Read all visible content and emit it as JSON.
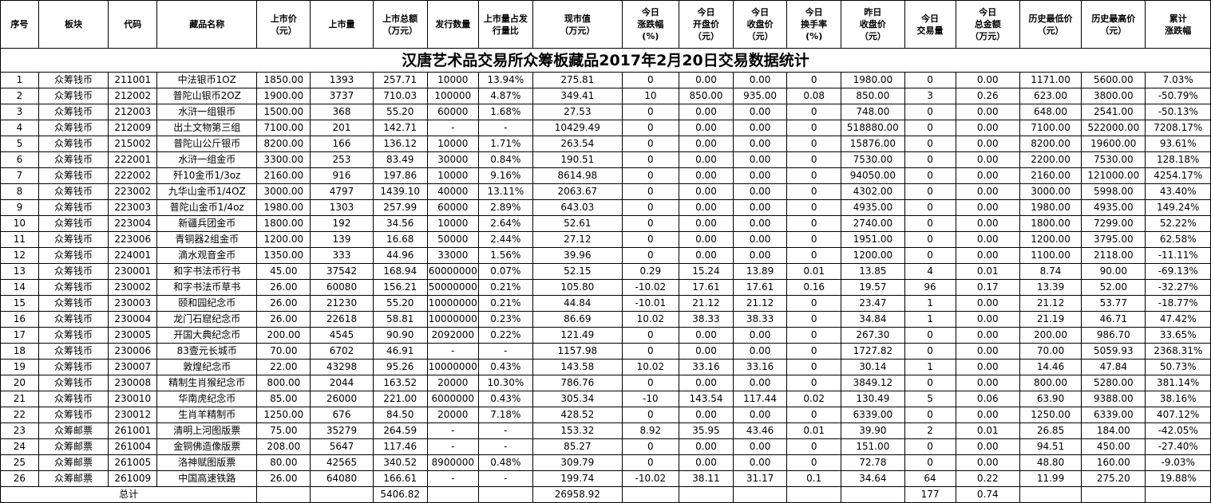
{
  "title": "汉唐艺术品交易所众筹板藏品2017年2月20日交易数据统计",
  "columns": [
    [
      "序号"
    ],
    [
      "板块"
    ],
    [
      "代码"
    ],
    [
      "藏品名称"
    ],
    [
      "上市价",
      "（元）"
    ],
    [
      "上市量"
    ],
    [
      "上市总额",
      "（万元）"
    ],
    [
      "发行数量"
    ],
    [
      "上市量占发",
      "行量比"
    ],
    [
      "现市值",
      "（万元）"
    ],
    [
      "今日",
      "涨跌幅",
      "(%)"
    ],
    [
      "今日",
      "开盘价",
      "（元）"
    ],
    [
      "今日",
      "收盘价",
      "（元）"
    ],
    [
      "今日",
      "换手率",
      "(%)"
    ],
    [
      "昨日",
      "收盘价",
      "（元）"
    ],
    [
      "今日",
      "交易量"
    ],
    [
      "今日",
      "总金额",
      "（万元）"
    ],
    [
      "历史最低价",
      "（元）"
    ],
    [
      "历史最高价",
      "（元）"
    ],
    [
      "累计",
      "涨跌幅"
    ]
  ],
  "rows": [
    [
      "1",
      "众筹钱币",
      "211001",
      "中法银币1OZ",
      "1850.00",
      "1393",
      "257.71",
      "10000",
      "13.94%",
      "275.81",
      "0",
      "0.00",
      "0.00",
      "0",
      "1980.00",
      "0",
      "0.00",
      "1171.00",
      "5600.00",
      "7.03%"
    ],
    [
      "2",
      "众筹钱币",
      "212002",
      "普陀山银币2OZ",
      "1900.00",
      "3737",
      "710.03",
      "100000",
      "4.87%",
      "349.41",
      "10",
      "850.00",
      "935.00",
      "0.08",
      "850.00",
      "3",
      "0.26",
      "623.00",
      "3800.00",
      "-50.79%"
    ],
    [
      "3",
      "众筹钱币",
      "212003",
      "水浒一组银币",
      "1500.00",
      "368",
      "55.20",
      "60000",
      "1.68%",
      "27.53",
      "0",
      "0.00",
      "0.00",
      "0",
      "748.00",
      "0",
      "0.00",
      "648.00",
      "2541.00",
      "-50.13%"
    ],
    [
      "4",
      "众筹钱币",
      "212009",
      "出土文物第三组",
      "7100.00",
      "201",
      "142.71",
      "-",
      "-",
      "10429.49",
      "0",
      "0.00",
      "0.00",
      "0",
      "518880.00",
      "0",
      "0.00",
      "7100.00",
      "522000.00",
      "7208.17%"
    ],
    [
      "5",
      "众筹钱币",
      "215002",
      "普陀山公斤银币",
      "8200.00",
      "166",
      "136.12",
      "10000",
      "1.71%",
      "263.54",
      "0",
      "0.00",
      "0.00",
      "0",
      "15876.00",
      "0",
      "0.00",
      "8200.00",
      "19600.00",
      "93.61%"
    ],
    [
      "6",
      "众筹钱币",
      "222001",
      "水浒一组金币",
      "3300.00",
      "253",
      "83.49",
      "30000",
      "0.84%",
      "190.51",
      "0",
      "0.00",
      "0.00",
      "0",
      "7530.00",
      "0",
      "0.00",
      "2200.00",
      "7530.00",
      "128.18%"
    ],
    [
      "7",
      "众筹钱币",
      "222002",
      "歼10金币1/3oz",
      "2160.00",
      "916",
      "197.86",
      "10000",
      "9.16%",
      "8614.98",
      "0",
      "0.00",
      "0.00",
      "0",
      "94050.00",
      "0",
      "0.00",
      "2160.00",
      "121000.00",
      "4254.17%"
    ],
    [
      "8",
      "众筹钱币",
      "223002",
      "九华山金币1/4OZ",
      "3000.00",
      "4797",
      "1439.10",
      "40000",
      "13.11%",
      "2063.67",
      "0",
      "0.00",
      "0.00",
      "0",
      "4302.00",
      "0",
      "0.00",
      "3000.00",
      "5998.00",
      "43.40%"
    ],
    [
      "9",
      "众筹钱币",
      "223003",
      "普陀山金币1/4oz",
      "1980.00",
      "1303",
      "257.99",
      "60000",
      "2.89%",
      "643.03",
      "0",
      "0.00",
      "0.00",
      "0",
      "4935.00",
      "0",
      "0.00",
      "1980.00",
      "4935.00",
      "149.24%"
    ],
    [
      "10",
      "众筹钱币",
      "223004",
      "新疆兵团金币",
      "1800.00",
      "192",
      "34.56",
      "10000",
      "2.64%",
      "52.61",
      "0",
      "0.00",
      "0.00",
      "0",
      "2740.00",
      "0",
      "0.00",
      "1800.00",
      "7299.00",
      "52.22%"
    ],
    [
      "11",
      "众筹钱币",
      "223006",
      "青铜器2组金币",
      "1200.00",
      "139",
      "16.68",
      "50000",
      "2.44%",
      "27.12",
      "0",
      "0.00",
      "0.00",
      "0",
      "1951.00",
      "0",
      "0.00",
      "1200.00",
      "3795.00",
      "62.58%"
    ],
    [
      "12",
      "众筹钱币",
      "224001",
      "滴水观音金币",
      "1350.00",
      "333",
      "44.96",
      "33000",
      "1.56%",
      "39.96",
      "0",
      "0.00",
      "0.00",
      "0",
      "1200.00",
      "0",
      "0.00",
      "1100.00",
      "2118.00",
      "-11.11%"
    ],
    [
      "13",
      "众筹钱币",
      "230001",
      "和字书法币行书",
      "45.00",
      "37542",
      "168.94",
      "60000000",
      "0.07%",
      "52.15",
      "0.29",
      "15.24",
      "13.89",
      "0.01",
      "13.85",
      "4",
      "0.01",
      "8.74",
      "90.00",
      "-69.13%"
    ],
    [
      "14",
      "众筹钱币",
      "230002",
      "和字书法币草书",
      "26.00",
      "60080",
      "156.21",
      "50000000",
      "0.21%",
      "105.80",
      "-10.02",
      "17.61",
      "17.61",
      "0.16",
      "19.57",
      "96",
      "0.17",
      "13.39",
      "52.00",
      "-32.27%"
    ],
    [
      "15",
      "众筹钱币",
      "230003",
      "颐和园纪念币",
      "26.00",
      "21230",
      "55.20",
      "10000000",
      "0.21%",
      "44.84",
      "-10.01",
      "21.12",
      "21.12",
      "0",
      "23.47",
      "1",
      "0.00",
      "21.12",
      "53.77",
      "-18.77%"
    ],
    [
      "16",
      "众筹钱币",
      "230004",
      "龙门石窟纪念币",
      "26.00",
      "22618",
      "58.81",
      "10000000",
      "0.23%",
      "86.69",
      "10.02",
      "38.33",
      "38.33",
      "0",
      "34.84",
      "1",
      "0.00",
      "21.19",
      "46.71",
      "47.42%"
    ],
    [
      "17",
      "众筹钱币",
      "230005",
      "开国大典纪念币",
      "200.00",
      "4545",
      "90.90",
      "2092000",
      "0.22%",
      "121.49",
      "0",
      "0.00",
      "0.00",
      "0",
      "267.30",
      "0",
      "0.00",
      "200.00",
      "986.70",
      "33.65%"
    ],
    [
      "18",
      "众筹钱币",
      "230006",
      "83壹元长城币",
      "70.00",
      "6702",
      "46.91",
      "-",
      "-",
      "1157.98",
      "0",
      "0.00",
      "0.00",
      "0",
      "1727.82",
      "0",
      "0.00",
      "70.00",
      "5059.93",
      "2368.31%"
    ],
    [
      "19",
      "众筹钱币",
      "230007",
      "敦煌纪念币",
      "22.00",
      "43298",
      "95.26",
      "10000000",
      "0.43%",
      "143.58",
      "10.02",
      "33.16",
      "33.16",
      "0",
      "30.14",
      "1",
      "0.00",
      "14.46",
      "47.84",
      "50.73%"
    ],
    [
      "20",
      "众筹钱币",
      "230008",
      "精制生肖猴纪念币",
      "800.00",
      "2044",
      "163.52",
      "20000",
      "10.30%",
      "786.76",
      "0",
      "0.00",
      "0.00",
      "0",
      "3849.12",
      "0",
      "0.00",
      "800.00",
      "5280.00",
      "381.14%"
    ],
    [
      "21",
      "众筹钱币",
      "230010",
      "华南虎纪念币",
      "85.00",
      "26000",
      "221.00",
      "6000000",
      "0.43%",
      "305.34",
      "-10",
      "143.54",
      "117.44",
      "0.02",
      "130.49",
      "5",
      "0.06",
      "63.90",
      "9388.00",
      "38.16%"
    ],
    [
      "22",
      "众筹钱币",
      "230012",
      "生肖羊精制币",
      "1250.00",
      "676",
      "84.50",
      "20000",
      "7.18%",
      "428.52",
      "0",
      "0.00",
      "0.00",
      "0",
      "6339.00",
      "0",
      "0.00",
      "1250.00",
      "6339.00",
      "407.12%"
    ],
    [
      "23",
      "众筹邮票",
      "261001",
      "清明上河图版票",
      "75.00",
      "35279",
      "264.59",
      "-",
      "-",
      "153.32",
      "8.92",
      "35.95",
      "43.46",
      "0.01",
      "39.90",
      "2",
      "0.01",
      "26.85",
      "184.00",
      "-42.05%"
    ],
    [
      "24",
      "众筹邮票",
      "261004",
      "金铜佛造像版票",
      "208.00",
      "5647",
      "117.46",
      "-",
      "-",
      "85.27",
      "0",
      "0.00",
      "0.00",
      "0",
      "151.00",
      "0",
      "0.00",
      "94.51",
      "450.00",
      "-27.40%"
    ],
    [
      "25",
      "众筹邮票",
      "261005",
      "洛神赋图版票",
      "80.00",
      "42565",
      "340.52",
      "8900000",
      "0.48%",
      "309.79",
      "0",
      "0.00",
      "0.00",
      "0",
      "72.78",
      "0",
      "0.00",
      "48.80",
      "160.00",
      "-9.03%"
    ],
    [
      "26",
      "众筹邮票",
      "261009",
      "中国高速铁路",
      "26.00",
      "64080",
      "166.61",
      "-",
      "-",
      "199.74",
      "-10.02",
      "38.11",
      "31.17",
      "0.1",
      "34.64",
      "64",
      "0.22",
      "11.99",
      "275.20",
      "19.88%"
    ]
  ],
  "total": {
    "label": "总计",
    "listing_total": "5406.82",
    "market_value": "26958.92",
    "volume": "177",
    "amount": "0.74"
  }
}
